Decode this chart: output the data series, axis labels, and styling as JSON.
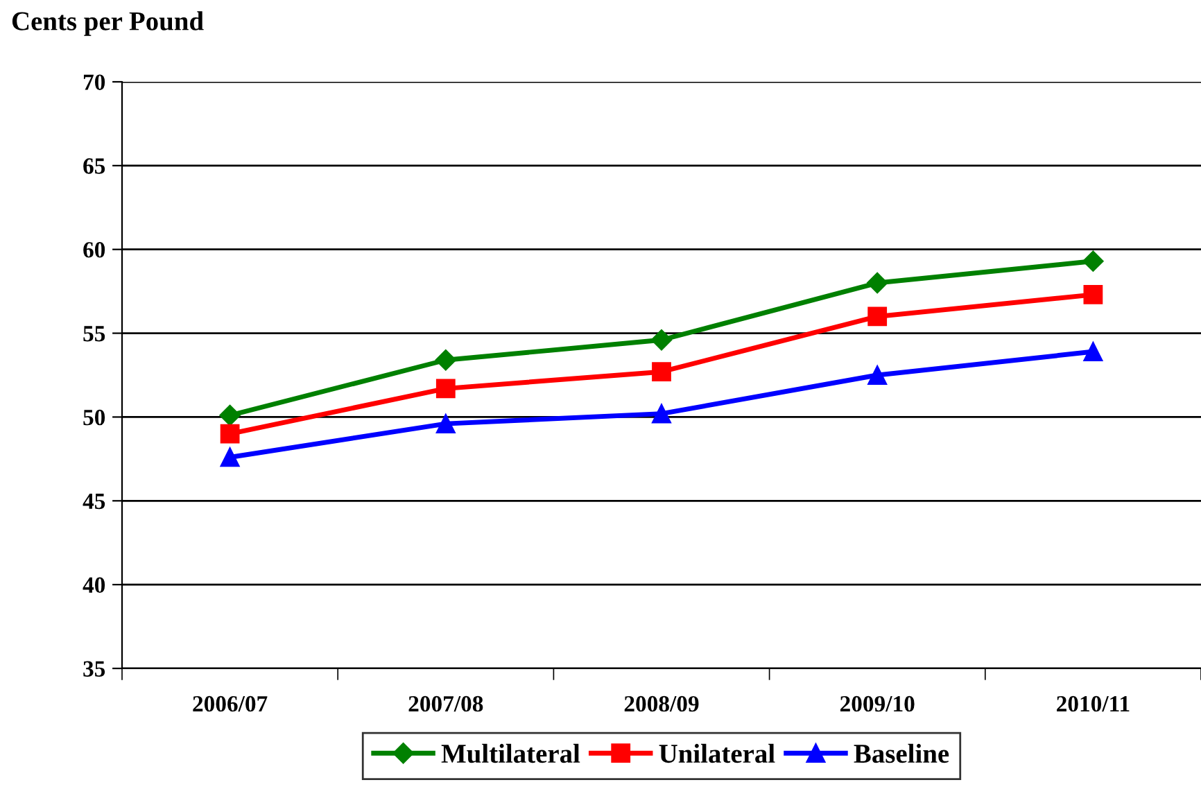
{
  "chart_data": {
    "type": "line",
    "ylabel": "Cents per Pound",
    "categories": [
      "2006/07",
      "2007/08",
      "2008/09",
      "2009/10",
      "2010/11"
    ],
    "series": [
      {
        "name": "Multilateral",
        "color": "#008000",
        "marker": "diamond",
        "values": [
          50.1,
          53.4,
          54.6,
          58.0,
          59.3
        ]
      },
      {
        "name": "Unilateral",
        "color": "#ff0000",
        "marker": "square",
        "values": [
          49.0,
          51.7,
          52.7,
          56.0,
          57.3
        ]
      },
      {
        "name": "Baseline",
        "color": "#0000ff",
        "marker": "triangle",
        "values": [
          47.6,
          49.6,
          50.2,
          52.5,
          53.9
        ]
      }
    ],
    "ylim": [
      35,
      70
    ],
    "yticks": [
      35,
      40,
      45,
      50,
      55,
      60,
      65,
      70
    ],
    "grid": "y",
    "legend": "bottom",
    "line_style": "solid"
  }
}
